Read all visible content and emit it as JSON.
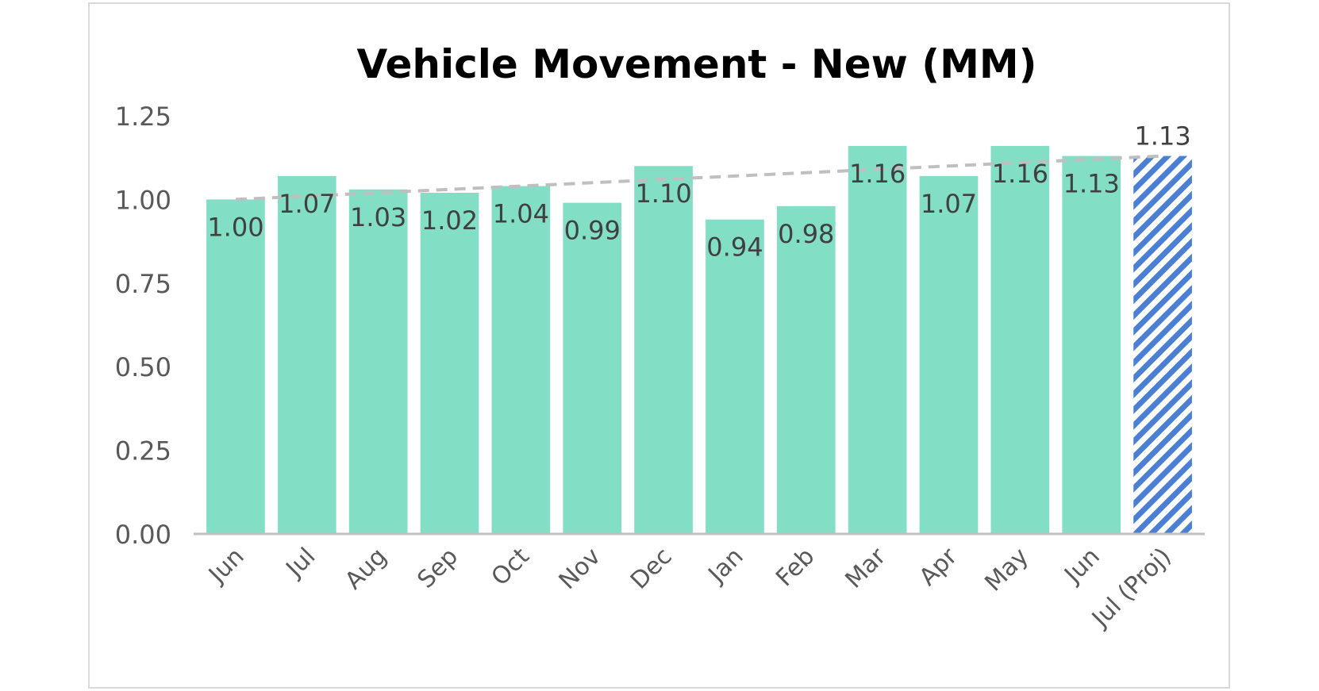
{
  "chart_data": {
    "type": "bar",
    "title": "Vehicle Movement - New (MM)",
    "xlabel": "",
    "ylabel": "",
    "ylim": [
      0,
      1.25
    ],
    "yticks": [
      "0.00",
      "0.25",
      "0.50",
      "0.75",
      "1.00",
      "1.25"
    ],
    "categories": [
      "Jun",
      "Jul",
      "Aug",
      "Sep",
      "Oct",
      "Nov",
      "Dec",
      "Jan",
      "Feb",
      "Mar",
      "Apr",
      "May",
      "Jun",
      "Jul (Proj)"
    ],
    "values": [
      1.0,
      1.07,
      1.03,
      1.02,
      1.04,
      0.99,
      1.1,
      0.94,
      0.98,
      1.16,
      1.07,
      1.16,
      1.13,
      1.13
    ],
    "data_labels": [
      "1.00",
      "1.07",
      "1.03",
      "1.02",
      "1.04",
      "0.99",
      "1.10",
      "0.94",
      "0.98",
      "1.16",
      "1.07",
      "1.16",
      "1.13",
      "1.13"
    ],
    "projected": [
      false,
      false,
      false,
      false,
      false,
      false,
      false,
      false,
      false,
      false,
      false,
      false,
      false,
      true
    ],
    "trendline": {
      "style": "dashed",
      "from_value": 1.0,
      "to_value": 1.13
    },
    "grid": false,
    "legend": "none",
    "colors": {
      "bar": "#82dfc5",
      "projected_stripe": "#4a7fd4",
      "projected_bg": "#ffffff",
      "trendline": "#bfbfbf",
      "axis": "#bfbfbf"
    }
  }
}
